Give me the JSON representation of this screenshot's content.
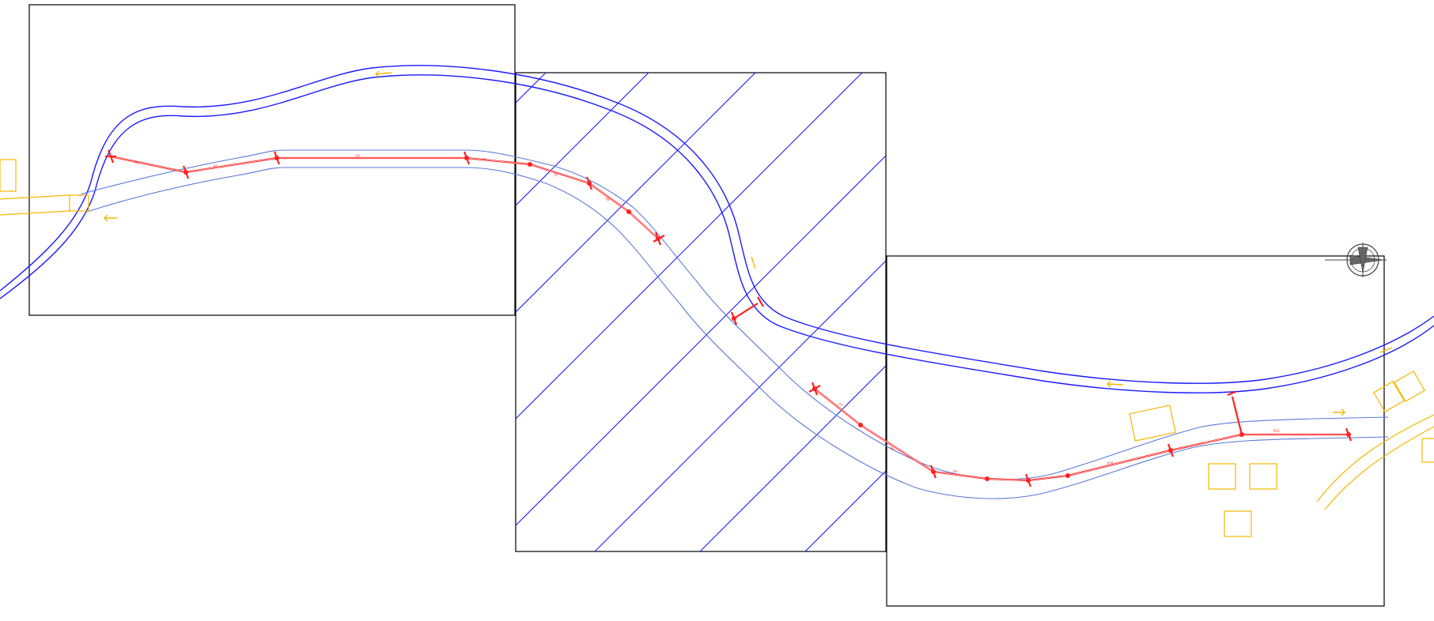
{
  "drawing": {
    "sheets": 3,
    "north_arrow": "north-arrow-icon"
  },
  "colors": {
    "frame": "#000000",
    "river": "#1a1aff",
    "road_edge": "#5a7ad8",
    "pipeline": "#ff2020",
    "existing_features": "#f5b700"
  },
  "labels": {
    "text": ""
  }
}
